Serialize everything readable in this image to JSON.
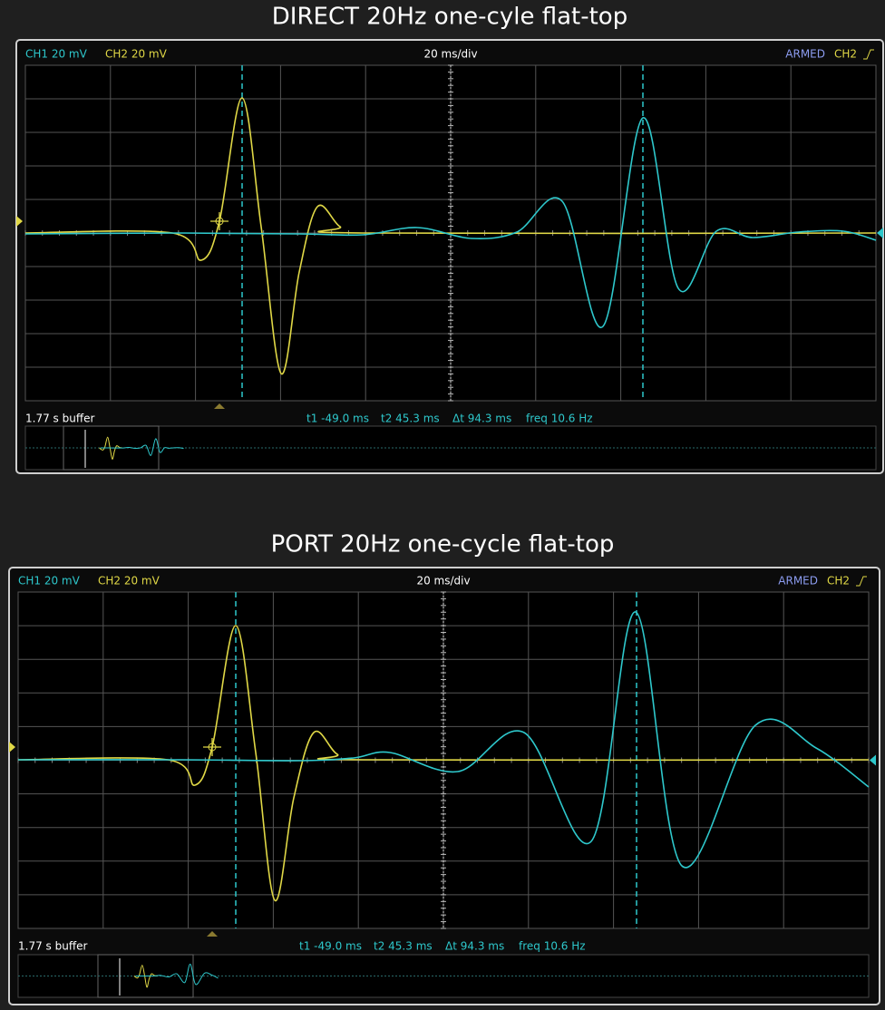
{
  "panels": [
    {
      "title": "DIRECT 20Hz one-cyle flat-top",
      "ch1": "CH1 20 mV",
      "ch2": "CH2 20 mV",
      "timebase": "20 ms/div",
      "status": "ARMED",
      "trigger": "CH2",
      "buffer": "1.77 s buffer",
      "measurements": {
        "t1": "t1 -49.0 ms",
        "t2": "t2 45.3 ms",
        "dt": "Δt 94.3 ms",
        "freq": "freq 10.6 Hz"
      }
    },
    {
      "title": "PORT 20Hz one-cycle flat-top",
      "ch1": "CH1 20 mV",
      "ch2": "CH2 20 mV",
      "timebase": "20 ms/div",
      "status": "ARMED",
      "trigger": "CH2",
      "buffer": "1.77 s buffer",
      "measurements": {
        "t1": "t1 -49.0 ms",
        "t2": "t2 45.3 ms",
        "dt": "Δt 94.3 ms",
        "freq": "freq 10.6 Hz"
      }
    }
  ]
}
